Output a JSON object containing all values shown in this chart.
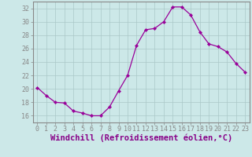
{
  "x": [
    0,
    1,
    2,
    3,
    4,
    5,
    6,
    7,
    8,
    9,
    10,
    11,
    12,
    13,
    14,
    15,
    16,
    17,
    18,
    19,
    20,
    21,
    22,
    23
  ],
  "y": [
    20.2,
    19.0,
    18.0,
    17.9,
    16.7,
    16.4,
    16.0,
    16.0,
    17.3,
    19.7,
    22.0,
    26.5,
    28.8,
    29.0,
    30.0,
    32.2,
    32.2,
    31.0,
    28.5,
    26.7,
    26.3,
    25.5,
    23.8,
    22.5
  ],
  "line_color": "#990099",
  "marker": "D",
  "marker_size": 2.2,
  "bg_color": "#cce8e8",
  "grid_color": "#aac8c8",
  "xlabel": "Windchill (Refroidissement éolien,°C)",
  "ylabel": "",
  "title": "",
  "xlim": [
    -0.5,
    23.5
  ],
  "ylim": [
    15.0,
    33.0
  ],
  "yticks": [
    16,
    18,
    20,
    22,
    24,
    26,
    28,
    30,
    32
  ],
  "xticks": [
    0,
    1,
    2,
    3,
    4,
    5,
    6,
    7,
    8,
    9,
    10,
    11,
    12,
    13,
    14,
    15,
    16,
    17,
    18,
    19,
    20,
    21,
    22,
    23
  ],
  "tick_label_color": "#880088",
  "xlabel_color": "#880088",
  "axis_color": "#888888",
  "font_size": 6.0,
  "xlabel_fontsize": 7.5
}
